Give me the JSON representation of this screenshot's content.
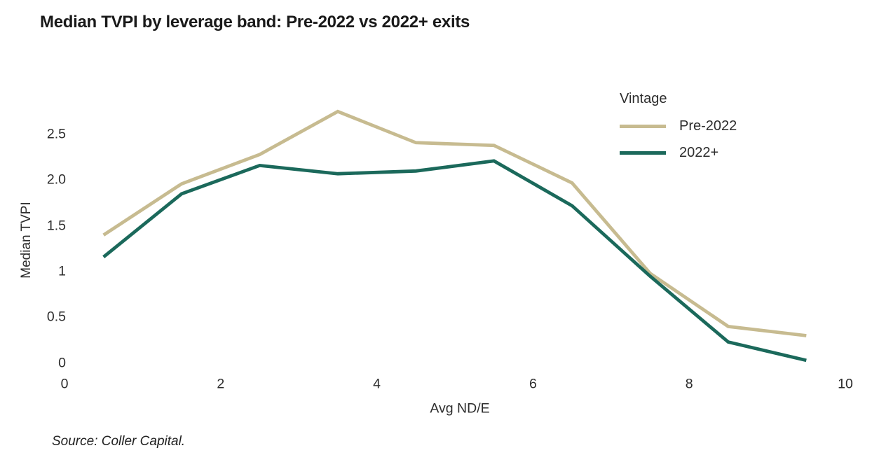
{
  "source": "Source: Coller Capital.",
  "chart_data": {
    "type": "line",
    "title": "Median TVPI by leverage band: Pre-2022 vs 2022+ exits",
    "xlabel": "Avg ND/E",
    "ylabel": "Median TVPI",
    "legend_title": "Vintage",
    "legend_position": "top-right",
    "grid": false,
    "axis_lines": false,
    "xlim": [
      0,
      10
    ],
    "ylim": [
      0,
      2.85
    ],
    "x_ticks": [
      0,
      2,
      4,
      6,
      8,
      10
    ],
    "y_ticks": [
      {
        "value": 0,
        "label": "0"
      },
      {
        "value": 0.5,
        "label": "0.5"
      },
      {
        "value": 1,
        "label": "1"
      },
      {
        "value": 1.5,
        "label": "1.5"
      },
      {
        "value": 2,
        "label": "2.0"
      },
      {
        "value": 2.5,
        "label": "2.5"
      }
    ],
    "x": [
      0.5,
      1.5,
      2.5,
      3.5,
      4.5,
      5.5,
      6.5,
      7.5,
      8.5,
      9.5
    ],
    "series": [
      {
        "name": "Pre-2022",
        "color": "#c7bb90",
        "values": [
          1.4,
          1.96,
          2.28,
          2.75,
          2.41,
          2.38,
          1.97,
          0.98,
          0.4,
          0.3
        ]
      },
      {
        "name": "2022+",
        "color": "#1b695b",
        "values": [
          1.16,
          1.85,
          2.16,
          2.07,
          2.1,
          2.21,
          1.72,
          0.95,
          0.23,
          0.03
        ]
      }
    ]
  }
}
